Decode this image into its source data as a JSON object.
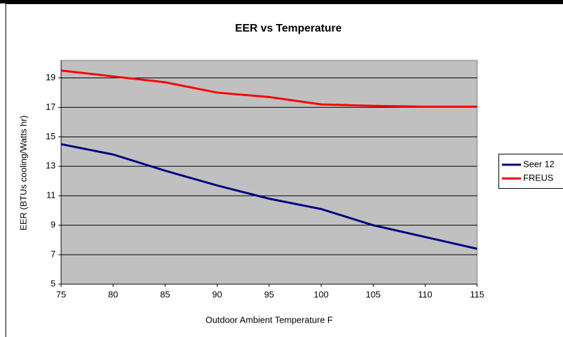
{
  "chart_data": {
    "type": "line",
    "title": "EER vs Temperature",
    "x_label": "Outdoor Ambient Temperature F",
    "y_label": "EER (BTUs cooling/Watts hr)",
    "x": [
      75,
      80,
      85,
      90,
      95,
      100,
      105,
      110,
      115
    ],
    "series": [
      {
        "name": "Seer 12",
        "color": "#000080",
        "values": [
          14.5,
          13.8,
          12.7,
          11.7,
          10.8,
          10.1,
          9.0,
          8.2,
          7.4
        ]
      },
      {
        "name": "FREUS",
        "color": "#ff0000",
        "values": [
          19.5,
          19.1,
          18.7,
          18.0,
          17.7,
          17.2,
          17.1,
          17.05,
          17.05
        ]
      }
    ],
    "xlim": [
      75,
      115
    ],
    "xticks": [
      75,
      80,
      85,
      90,
      95,
      100,
      105,
      110,
      115
    ],
    "ylim": [
      5,
      20
    ],
    "yticks": [
      5,
      7,
      9,
      11,
      13,
      15,
      17,
      19
    ],
    "grid": true,
    "legend": "right",
    "plot_background": "#c0c0c0"
  }
}
